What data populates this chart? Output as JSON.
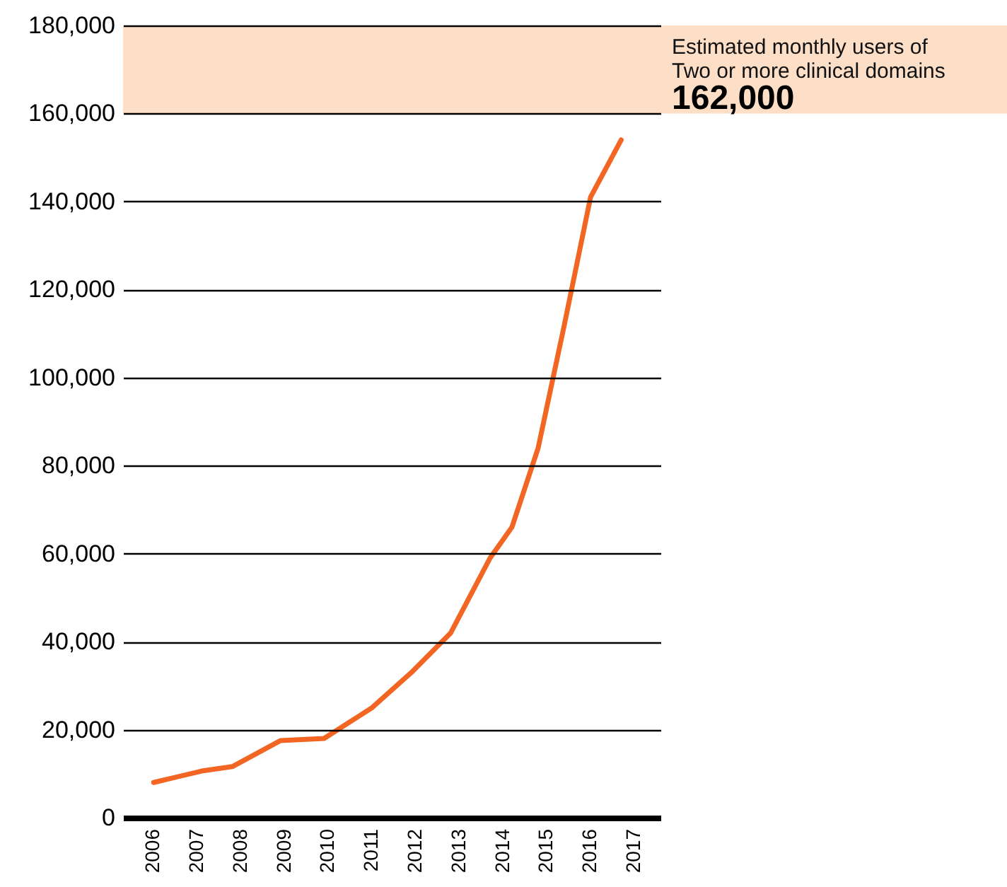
{
  "chart_data": {
    "type": "line",
    "x": [
      2006,
      2007.1,
      2007.8,
      2008.9,
      2009.9,
      2011,
      2011.9,
      2012.8,
      2013.7,
      2014.2,
      2014.8,
      2015.4,
      2016,
      2016.7
    ],
    "series": [
      {
        "color": "#f26522",
        "values": [
          8000,
          10600,
          11600,
          17500,
          18000,
          25000,
          33000,
          42000,
          59000,
          66000,
          84000,
          112000,
          141000,
          154000
        ]
      }
    ],
    "xlim": [
      2005.3,
      2017.6
    ],
    "xticks": [
      2006,
      2007,
      2008,
      2009,
      2010,
      2011,
      2012,
      2013,
      2014,
      2015,
      2016,
      2017
    ],
    "ylim": [
      0,
      180000
    ],
    "yticks": [
      0,
      {
        "value": 20000,
        "label": "20,000"
      },
      {
        "value": 40000,
        "label": "40,000"
      },
      {
        "value": 60000,
        "label": "60,000"
      },
      {
        "value": 80000,
        "label": "80,000"
      },
      {
        "value": 100000,
        "label": "100,000"
      },
      {
        "value": 120000,
        "label": "120,000"
      },
      {
        "value": 140000,
        "label": "140,000"
      },
      {
        "value": 160000,
        "label": "160,000"
      },
      {
        "value": 180000,
        "label": "180,000"
      }
    ],
    "grid": "y",
    "marker": "none",
    "line_style": "solid",
    "bands": [
      {
        "axis": "y",
        "from": 160000,
        "to": 180000,
        "label": "Estimated monthly users of\nTwo or more clinical domains",
        "color": "#fddfc7"
      }
    ],
    "annotations": [
      "162,000"
    ]
  }
}
